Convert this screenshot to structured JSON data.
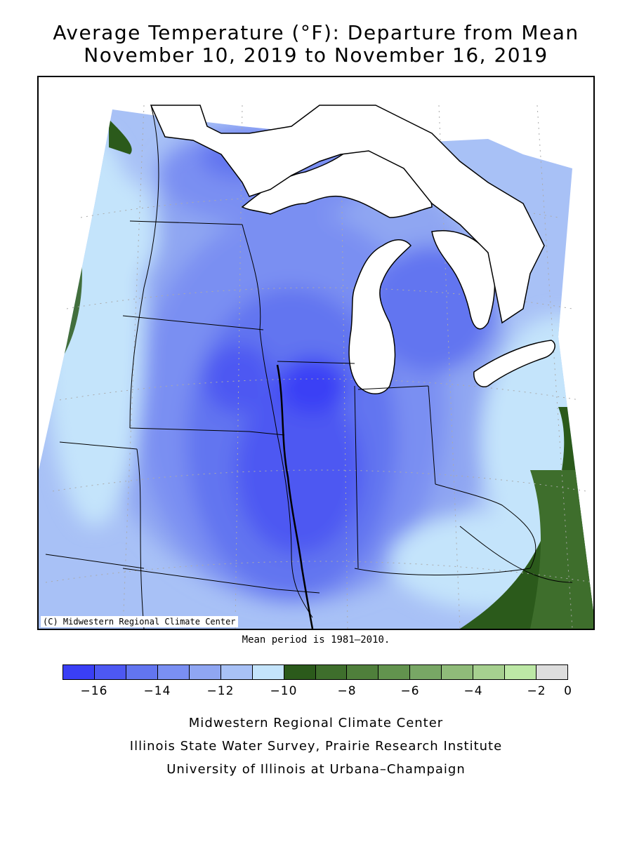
{
  "title": {
    "line1": "Average Temperature (°F): Departure from Mean",
    "line2": "November 10, 2019 to November 16, 2019"
  },
  "map": {
    "copyright": "(C) Midwestern Regional Climate Center",
    "region": "Midwest United States",
    "features": [
      "Lake Superior",
      "Lake Michigan",
      "Lake Huron",
      "Lake Erie",
      "state boundaries",
      "lat/lon grid"
    ]
  },
  "mean_note": "Mean period is 1981–2010.",
  "legend": {
    "unit": "°F departure",
    "colors": [
      "#3a3ff5",
      "#4d58f2",
      "#6275f0",
      "#7a8ff2",
      "#8fa6f2",
      "#a8c1f6",
      "#c4e4fb",
      "#2b5a1b",
      "#3e6e2c",
      "#4f7f3b",
      "#62934e",
      "#78a765",
      "#8fbb79",
      "#a6d08f",
      "#bde8a6",
      "#dddddd"
    ],
    "ticks": [
      "−16",
      "−14",
      "−12",
      "−10",
      "−8",
      "−6",
      "−4",
      "−2",
      "0"
    ]
  },
  "credits": {
    "line1": "Midwestern Regional Climate Center",
    "line2": "Illinois State Water Survey, Prairie Research Institute",
    "line3": "University of Illinois at Urbana–Champaign"
  }
}
